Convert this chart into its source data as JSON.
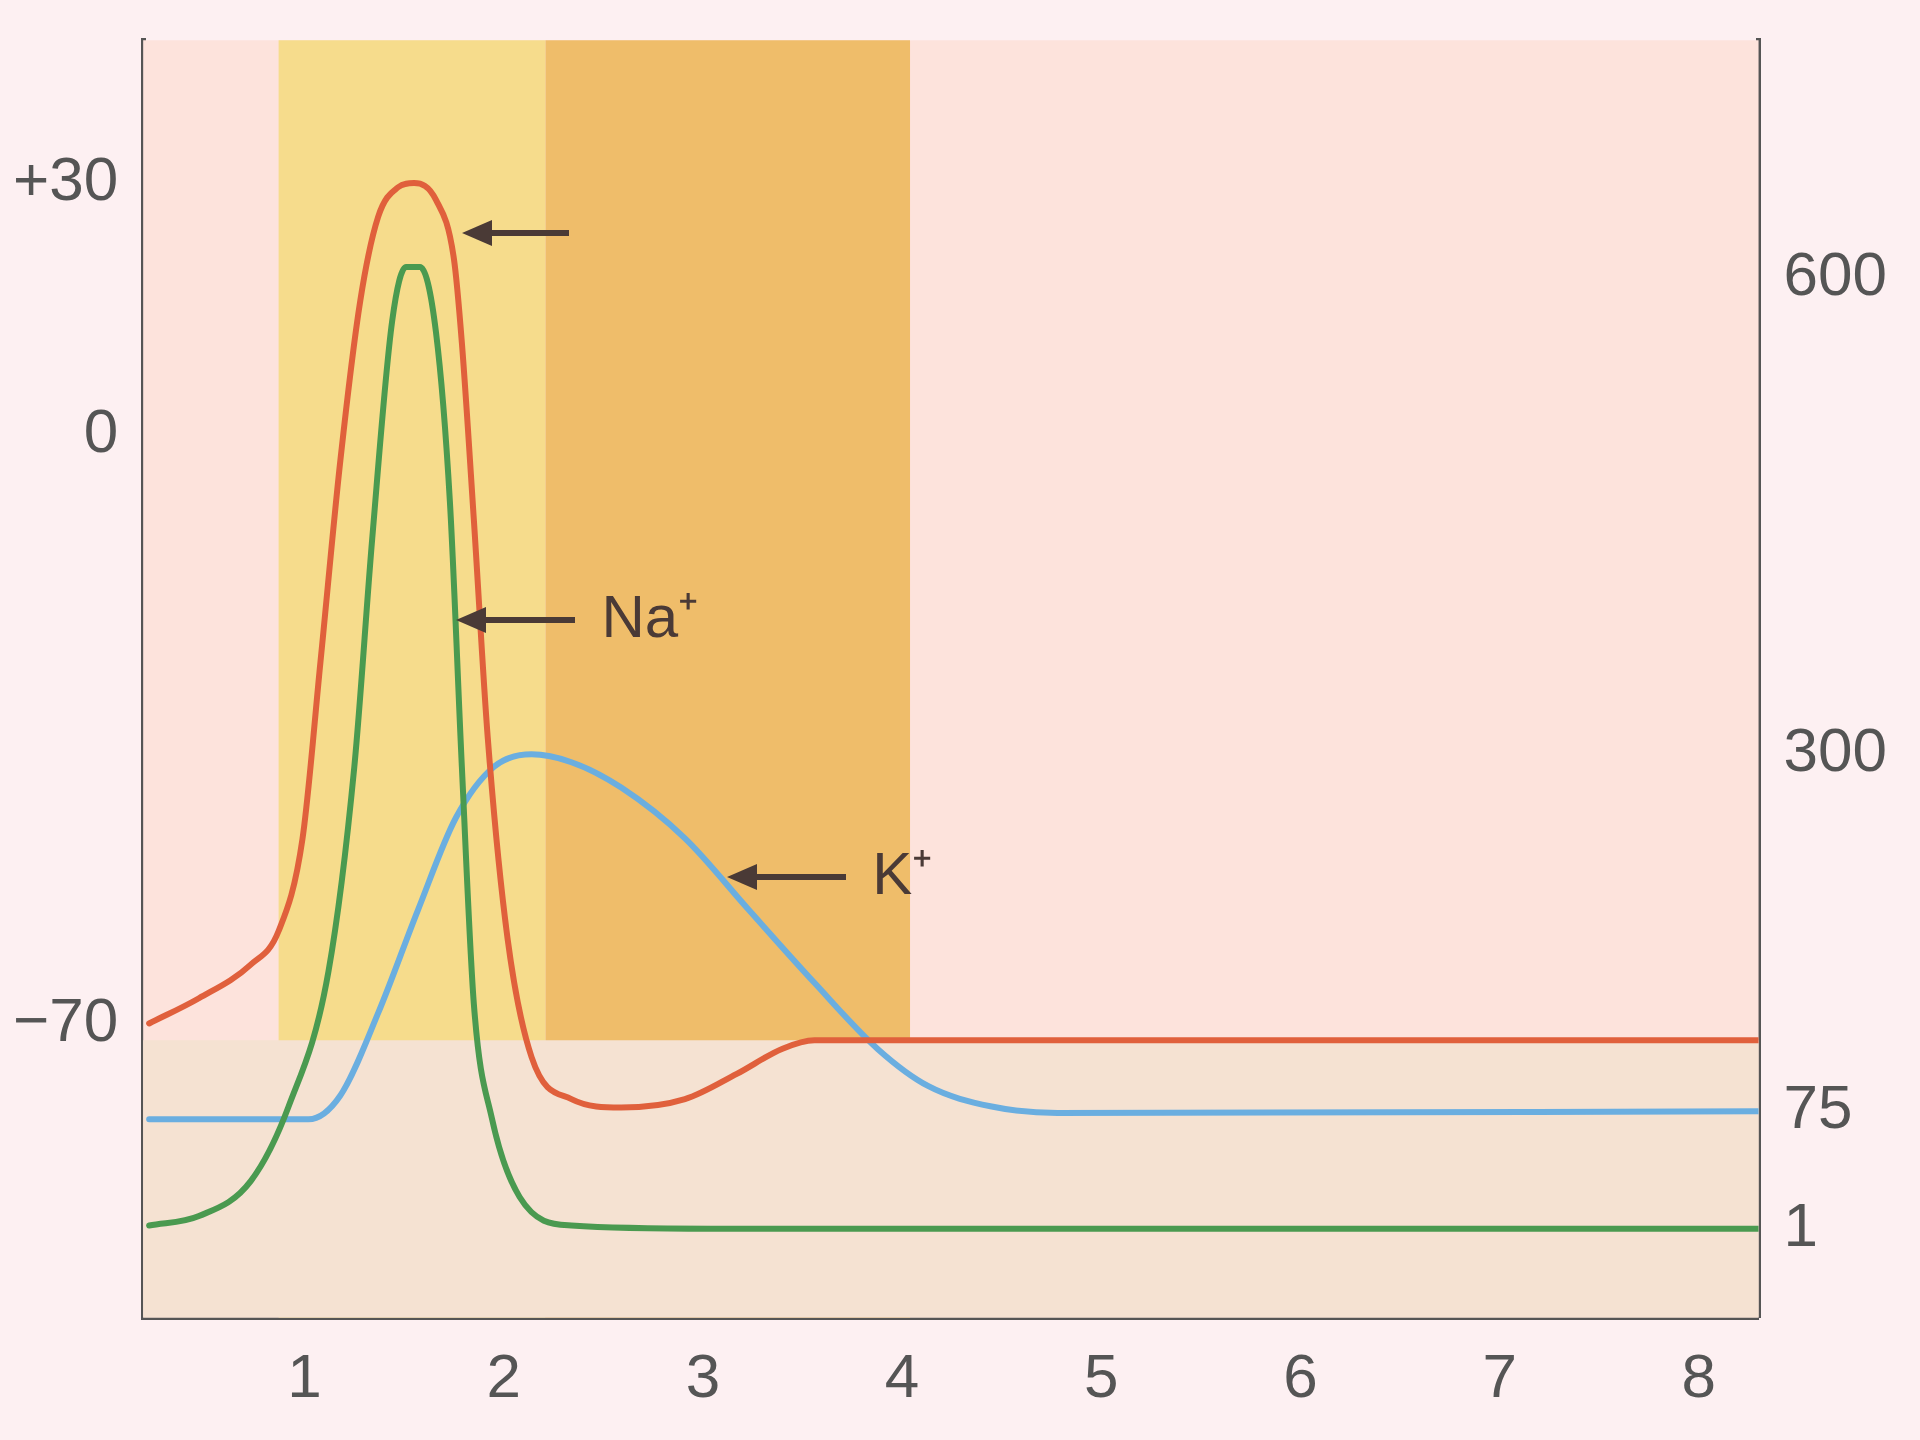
{
  "chart_data": {
    "type": "line",
    "xlim": [
      0.19,
      8.3
    ],
    "xticks": [
      1,
      2,
      3,
      4,
      5,
      6,
      7,
      8
    ],
    "ylim": [
      -105,
      47
    ],
    "yticks": [
      {
        "value": 30,
        "label": "+30"
      },
      0,
      {
        "value": -70,
        "label": "−70"
      }
    ],
    "y2lim": [
      -55,
      750
    ],
    "y2ticks": [
      1,
      75,
      300,
      600
    ],
    "grid": false,
    "legend": false,
    "marker": "none",
    "series": [
      {
        "color": "#e0603c",
        "x": [
          0.22,
          0.47,
          0.73,
          0.87,
          0.99,
          1.08,
          1.18,
          1.28,
          1.37,
          1.47,
          1.55,
          1.66,
          1.75,
          1.79,
          1.85,
          1.92,
          2.02,
          2.14,
          2.34,
          2.59,
          2.91,
          3.17,
          3.4,
          3.56,
          4.33,
          5.61,
          8.3
        ],
        "values": [
          -70,
          -67,
          -63,
          -59,
          -48,
          -27,
          -3,
          16,
          26,
          29.5,
          30,
          28,
          21,
          11,
          -10,
          -36,
          -60,
          -74,
          -79,
          -80,
          -79,
          -76,
          -73,
          -72,
          -72,
          -72,
          -72
        ]
      },
      {
        "color": "#4a9a50",
        "axis": "y2",
        "x": [
          0.22,
          0.47,
          0.73,
          0.92,
          1.12,
          1.25,
          1.34,
          1.44,
          1.51,
          1.58,
          1.66,
          1.73,
          1.79,
          1.85,
          1.94,
          2.08,
          2.34,
          3.04,
          8.3
        ],
        "values": [
          3,
          9,
          31,
          78,
          163,
          292,
          436,
          573,
          607,
          607,
          566,
          459,
          292,
          143,
          71,
          21,
          3,
          1,
          1
        ]
      },
      {
        "color": "#6aaee0",
        "axis": "y2",
        "x": [
          0.22,
          1.02,
          1.18,
          1.37,
          1.57,
          1.76,
          1.95,
          2.14,
          2.34,
          2.59,
          2.91,
          3.23,
          3.56,
          3.88,
          4.13,
          4.45,
          4.78,
          8.3
        ],
        "values": [
          70,
          70,
          85,
          137,
          202,
          260,
          292,
          300,
          295,
          279,
          247,
          202,
          156,
          114,
          91,
          78,
          74,
          75
        ]
      }
    ],
    "bands": [
      {
        "axis": "x",
        "from": 0.87,
        "to": 2.21,
        "color": "#f6dc8c"
      },
      {
        "axis": "x",
        "from": 2.21,
        "to": 4.04,
        "color": "#efbd6a"
      },
      {
        "axis": "y",
        "from": -105,
        "to": -72,
        "color": "#f5e2d2"
      }
    ],
    "annotations": [
      {
        "text": "Na⁺",
        "x": 1.76,
        "y": -22
      },
      {
        "text": "K⁺",
        "x": 3.12,
        "y": -52.6
      }
    ]
  }
}
